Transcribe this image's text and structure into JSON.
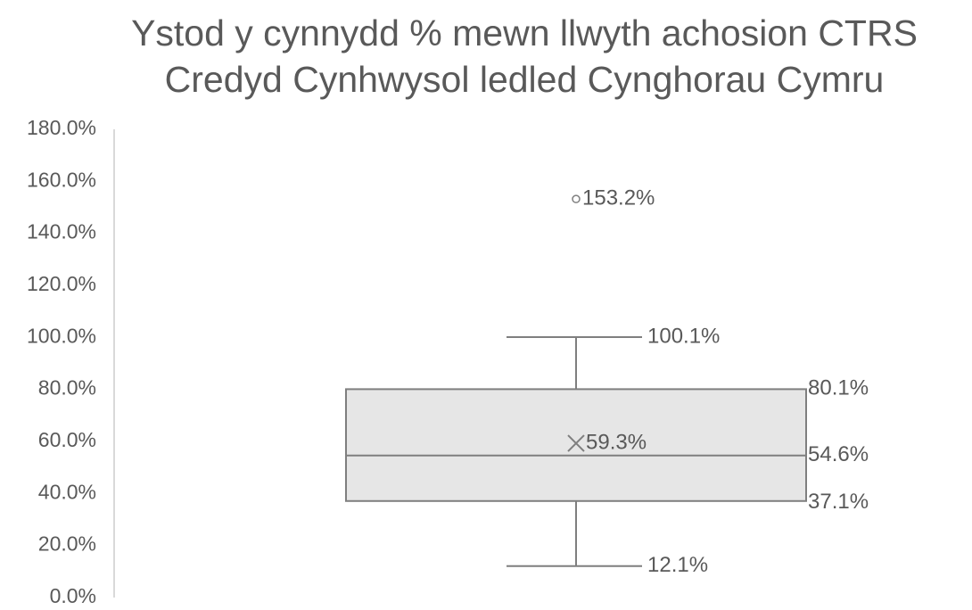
{
  "chart_data": {
    "type": "box",
    "title": [
      "Ystod y cynnydd % mewn llwyth achosion CTRS",
      "Credyd Cynhwysol ledled Cynghorau Cymru"
    ],
    "ylim": [
      0,
      180
    ],
    "yticks": [
      {
        "value": 0,
        "label": "0.0%"
      },
      {
        "value": 20,
        "label": "20.0%"
      },
      {
        "value": 40,
        "label": "40.0%"
      },
      {
        "value": 60,
        "label": "60.0%"
      },
      {
        "value": 80,
        "label": "80.0%"
      },
      {
        "value": 100,
        "label": "100.0%"
      },
      {
        "value": 120,
        "label": "120.0%"
      },
      {
        "value": 140,
        "label": "140.0%"
      },
      {
        "value": 160,
        "label": "160.0%"
      },
      {
        "value": 180,
        "label": "180.0%"
      }
    ],
    "values": {
      "min": 12.1,
      "q1": 37.1,
      "median": 54.6,
      "q3": 80.1,
      "max": 100.1,
      "mean": 59.3
    },
    "value_labels": {
      "min": "12.1%",
      "q1": "37.1%",
      "median": "54.6%",
      "q3": "80.1%",
      "max": "100.1%",
      "mean": "59.3%"
    },
    "outliers": [
      153.2
    ],
    "outlier_labels": [
      "153.2%"
    ],
    "color": "#e6e6e6",
    "line_color": "#7f7f7f"
  }
}
